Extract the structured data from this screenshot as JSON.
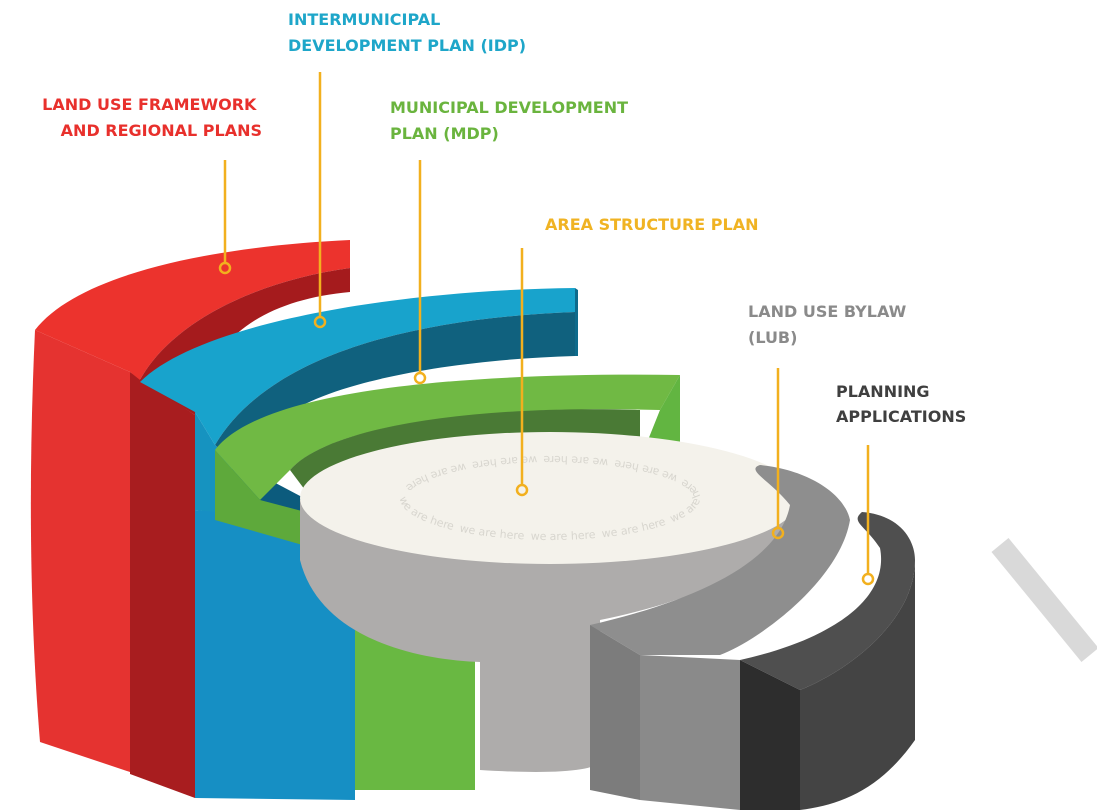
{
  "labels": [
    {
      "lines": [
        "LAND USE FRAMEWORK",
        "AND REGIONAL PLANS"
      ],
      "color": "#e8302c"
    },
    {
      "lines": [
        "INTERMUNICIPAL",
        "DEVELOPMENT PLAN (IDP)"
      ],
      "color": "#1ea6c9"
    },
    {
      "lines": [
        "MUNICIPAL DEVELOPMENT",
        "PLAN (MDP)"
      ],
      "color": "#6ab43e"
    },
    {
      "lines": [
        "AREA STRUCTURE PLAN"
      ],
      "color": "#f0b323"
    },
    {
      "lines": [
        "LAND USE BYLAW",
        "(LUB)"
      ],
      "color": "#8a8a8a"
    },
    {
      "lines": [
        "PLANNING",
        "APPLICATIONS"
      ],
      "color": "#3f3f3f"
    }
  ],
  "center_text": "we are here"
}
